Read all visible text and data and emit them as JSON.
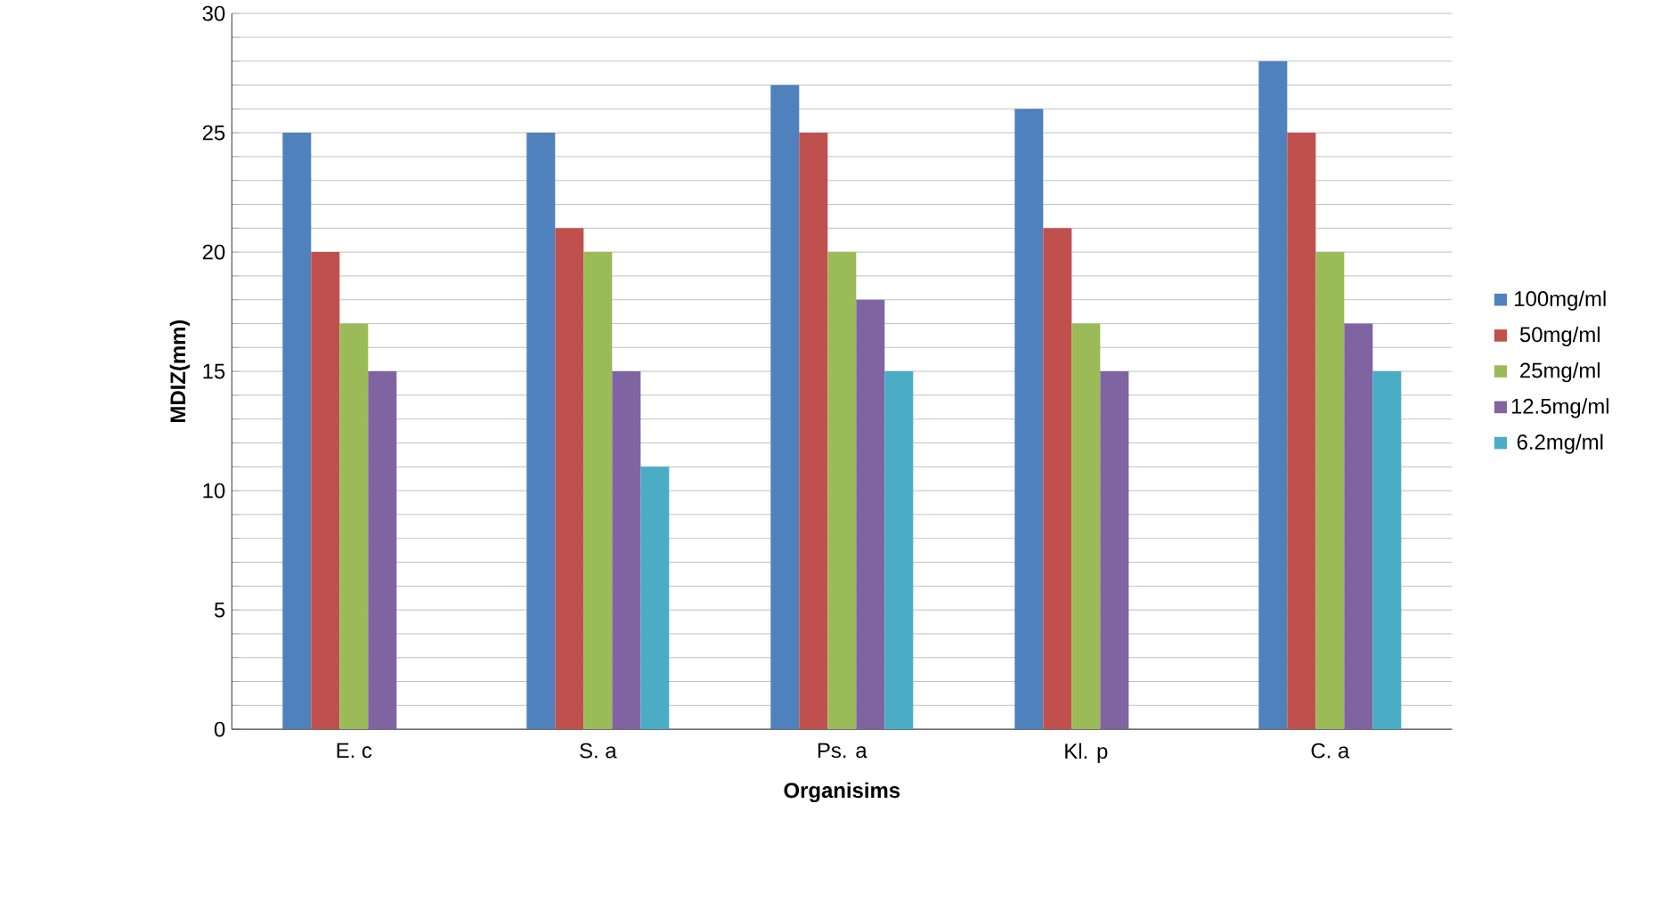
{
  "chart_data": {
    "type": "bar",
    "xlabel": "**Organisims**",
    "ylabel": "**MDIZ(mm)**",
    "categories": [
      "E. c",
      "S. a",
      "Ps. a",
      "Kl. p",
      "C. a"
    ],
    "series": [
      {
        "name": "100mg/ml",
        "color": "#4f81bd",
        "values": [
          25,
          25,
          27,
          26,
          28
        ]
      },
      {
        "name": "50mg/ml",
        "color": "#c0504d",
        "values": [
          20,
          21,
          25,
          21,
          25
        ]
      },
      {
        "name": "25mg/ml",
        "color": "#9bbb59",
        "values": [
          17,
          20,
          20,
          17,
          20
        ]
      },
      {
        "name": "12.5mg/ml",
        "color": "#8064a2",
        "values": [
          15,
          15,
          18,
          15,
          17
        ]
      },
      {
        "name": "6.2mg/ml",
        "color": "#4bacc6",
        "values": [
          null,
          11,
          15,
          null,
          15
        ]
      }
    ],
    "ylim": [
      0,
      30
    ],
    "yticks": [
      0,
      {
        "value": 1,
        "label": null
      },
      {
        "value": 2,
        "label": null
      },
      {
        "value": 3,
        "label": null
      },
      {
        "value": 4,
        "label": null
      },
      5,
      {
        "value": 6,
        "label": null
      },
      {
        "value": 7,
        "label": null
      },
      {
        "value": 8,
        "label": null
      },
      {
        "value": 9,
        "label": null
      },
      10,
      {
        "value": 11,
        "label": null
      },
      {
        "value": 12,
        "label": null
      },
      {
        "value": 13,
        "label": null
      },
      {
        "value": 14,
        "label": null
      },
      15,
      {
        "value": 16,
        "label": null
      },
      {
        "value": 17,
        "label": null
      },
      {
        "value": 18,
        "label": null
      },
      {
        "value": 19,
        "label": null
      },
      20,
      {
        "value": 21,
        "label": null
      },
      {
        "value": 22,
        "label": null
      },
      {
        "value": 23,
        "label": null
      },
      {
        "value": 24,
        "label": null
      },
      25,
      {
        "value": 26,
        "label": null
      },
      {
        "value": 27,
        "label": null
      },
      {
        "value": 28,
        "label": null
      },
      {
        "value": 29,
        "label": null
      },
      30
    ],
    "grid": "y",
    "legend": "right"
  }
}
